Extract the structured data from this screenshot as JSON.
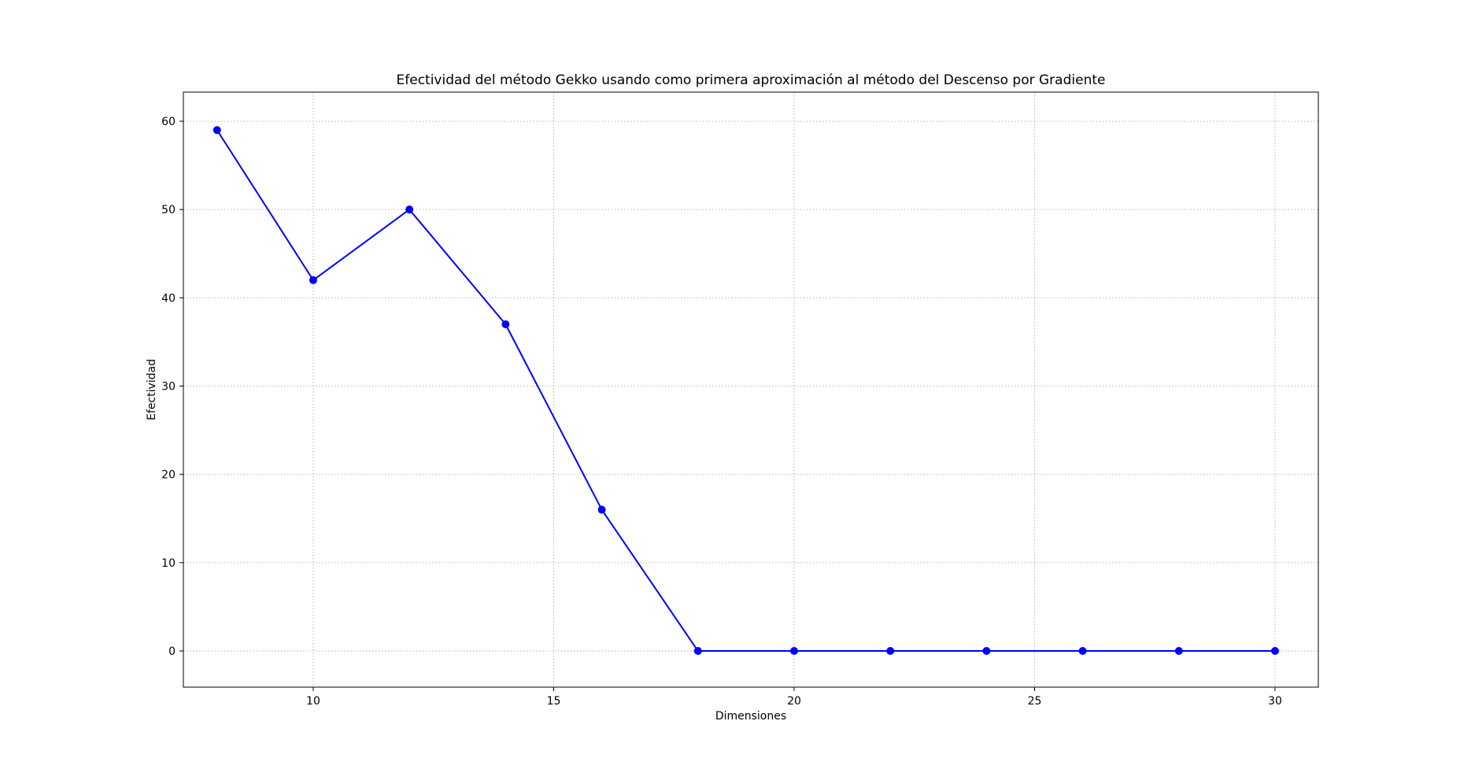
{
  "chart_data": {
    "type": "line",
    "title": "Efectividad del método Gekko usando como primera aproximación al método del Descenso por Gradiente",
    "xlabel": "Dimensiones",
    "ylabel": "Efectividad",
    "x": [
      8,
      10,
      12,
      14,
      16,
      18,
      20,
      22,
      24,
      26,
      28,
      30
    ],
    "series": [
      {
        "values": [
          59,
          42,
          50,
          37,
          16,
          0,
          0,
          0,
          0,
          0,
          0,
          0
        ],
        "color": "#0000ff",
        "marker": "circle"
      }
    ],
    "xlim": [
      7.3,
      30.9
    ],
    "ylim": [
      -4.1,
      63.3
    ],
    "xticks": [
      10,
      15,
      20,
      25,
      30
    ],
    "yticks": [
      0,
      10,
      20,
      30,
      40,
      50,
      60
    ],
    "grid": true,
    "legend": "none"
  }
}
